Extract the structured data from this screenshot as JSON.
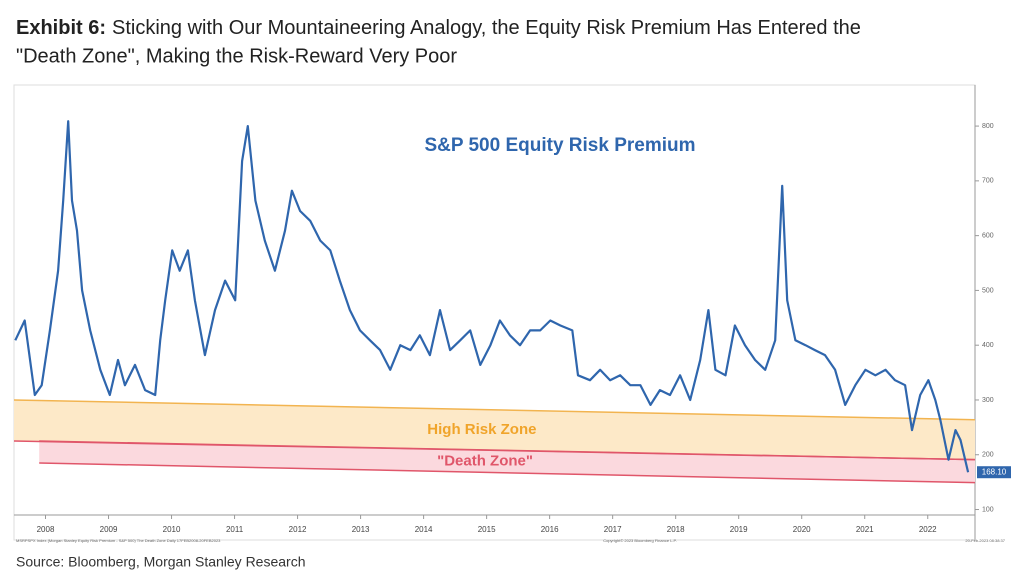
{
  "chart_data": {
    "type": "line",
    "title_prefix": "Exhibit 6:",
    "title": "Sticking with Our Mountaineering Analogy, the Equity Risk Premium Has Entered the \"Death Zone\", Making the Risk-Reward Very Poor",
    "annotation": "S&P 500 Equity Risk Premium",
    "source": "Source: Bloomberg, Morgan Stanley Research",
    "footer_left": "MSRPSPX Index (Morgan Stanley Equity Risk Premium - S&P 500) The Death Zone Daily 17FEB2008-20FEB2023",
    "footer_center": "Copyright© 2023 Bloomberg Finance L.P.",
    "footer_right": "20-Feb-2023 08:38:37",
    "color": "#2f66ad",
    "x": [
      2008.02,
      2008.17,
      2008.33,
      2008.44,
      2008.57,
      2008.7,
      2008.78,
      2008.86,
      2008.92,
      2009.0,
      2009.08,
      2009.21,
      2009.37,
      2009.52,
      2009.65,
      2009.76,
      2009.92,
      2010.08,
      2010.24,
      2010.32,
      2010.4,
      2010.51,
      2010.63,
      2010.76,
      2010.87,
      2011.03,
      2011.19,
      2011.35,
      2011.51,
      2011.62,
      2011.71,
      2011.83,
      2011.98,
      2012.14,
      2012.3,
      2012.41,
      2012.54,
      2012.7,
      2012.86,
      2013.02,
      2013.17,
      2013.33,
      2013.49,
      2013.65,
      2013.81,
      2013.97,
      2014.13,
      2014.29,
      2014.44,
      2014.6,
      2014.76,
      2014.92,
      2015.08,
      2015.24,
      2015.4,
      2015.56,
      2015.71,
      2015.87,
      2016.03,
      2016.19,
      2016.35,
      2016.51,
      2016.67,
      2016.86,
      2016.95,
      2017.14,
      2017.3,
      2017.46,
      2017.62,
      2017.78,
      2017.94,
      2018.1,
      2018.25,
      2018.41,
      2018.57,
      2018.73,
      2018.89,
      2019.02,
      2019.13,
      2019.29,
      2019.44,
      2019.6,
      2019.76,
      2019.92,
      2020.08,
      2020.19,
      2020.27,
      2020.4,
      2020.56,
      2020.71,
      2020.87,
      2021.03,
      2021.19,
      2021.35,
      2021.51,
      2021.67,
      2021.83,
      2021.98,
      2022.14,
      2022.25,
      2022.38,
      2022.51,
      2022.62,
      2022.7,
      2022.83,
      2022.94,
      2023.02,
      2023.14
    ],
    "values": [
      409,
      445,
      309,
      327,
      427,
      536,
      664,
      809,
      664,
      609,
      500,
      427,
      355,
      309,
      373,
      327,
      364,
      318,
      309,
      409,
      482,
      573,
      536,
      573,
      482,
      382,
      464,
      518,
      482,
      736,
      800,
      664,
      591,
      536,
      609,
      682,
      645,
      627,
      591,
      573,
      518,
      464,
      427,
      409,
      391,
      355,
      400,
      391,
      418,
      382,
      464,
      391,
      409,
      427,
      364,
      400,
      445,
      418,
      400,
      427,
      427,
      445,
      436,
      427,
      345,
      336,
      355,
      336,
      345,
      327,
      327,
      291,
      318,
      309,
      345,
      300,
      373,
      464,
      355,
      345,
      436,
      400,
      373,
      355,
      409,
      691,
      482,
      409,
      400,
      391,
      382,
      355,
      291,
      327,
      355,
      345,
      355,
      336,
      327,
      245,
      309,
      336,
      300,
      264,
      191,
      245,
      227,
      168.1
    ],
    "end_label": {
      "value": 168.1,
      "label": "168.10"
    },
    "zones": [
      {
        "label": "High Risk Zone",
        "x": [
          2008.0,
          2023.25
        ],
        "upper": [
          300,
          264
        ],
        "lower": [
          225,
          191
        ],
        "fill": "#fde9c8",
        "line": "#f2b450",
        "text_color": "#f0a42a"
      },
      {
        "label": "\"Death Zone\"",
        "x": [
          2008.4,
          2023.25
        ],
        "upper": [
          225,
          191
        ],
        "lower": [
          185,
          149
        ],
        "fill": "#fbd9de",
        "line": "#e0566a",
        "text_color": "#e0566a"
      }
    ],
    "xlim": [
      2008.0,
      2023.25
    ],
    "xticks": [
      {
        "value": 2008.5,
        "label": "2008"
      },
      {
        "value": 2009.5,
        "label": "2009"
      },
      {
        "value": 2010.5,
        "label": "2010"
      },
      {
        "value": 2011.5,
        "label": "2011"
      },
      {
        "value": 2012.5,
        "label": "2012"
      },
      {
        "value": 2013.5,
        "label": "2013"
      },
      {
        "value": 2014.5,
        "label": "2014"
      },
      {
        "value": 2015.5,
        "label": "2015"
      },
      {
        "value": 2016.5,
        "label": "2016"
      },
      {
        "value": 2017.5,
        "label": "2017"
      },
      {
        "value": 2018.5,
        "label": "2018"
      },
      {
        "value": 2019.5,
        "label": "2019"
      },
      {
        "value": 2020.5,
        "label": "2020"
      },
      {
        "value": 2021.5,
        "label": "2021"
      },
      {
        "value": 2022.5,
        "label": "2022"
      }
    ],
    "ylim": [
      90,
      875
    ],
    "yticks": [
      100,
      200,
      300,
      400,
      500,
      600,
      700,
      800
    ]
  }
}
